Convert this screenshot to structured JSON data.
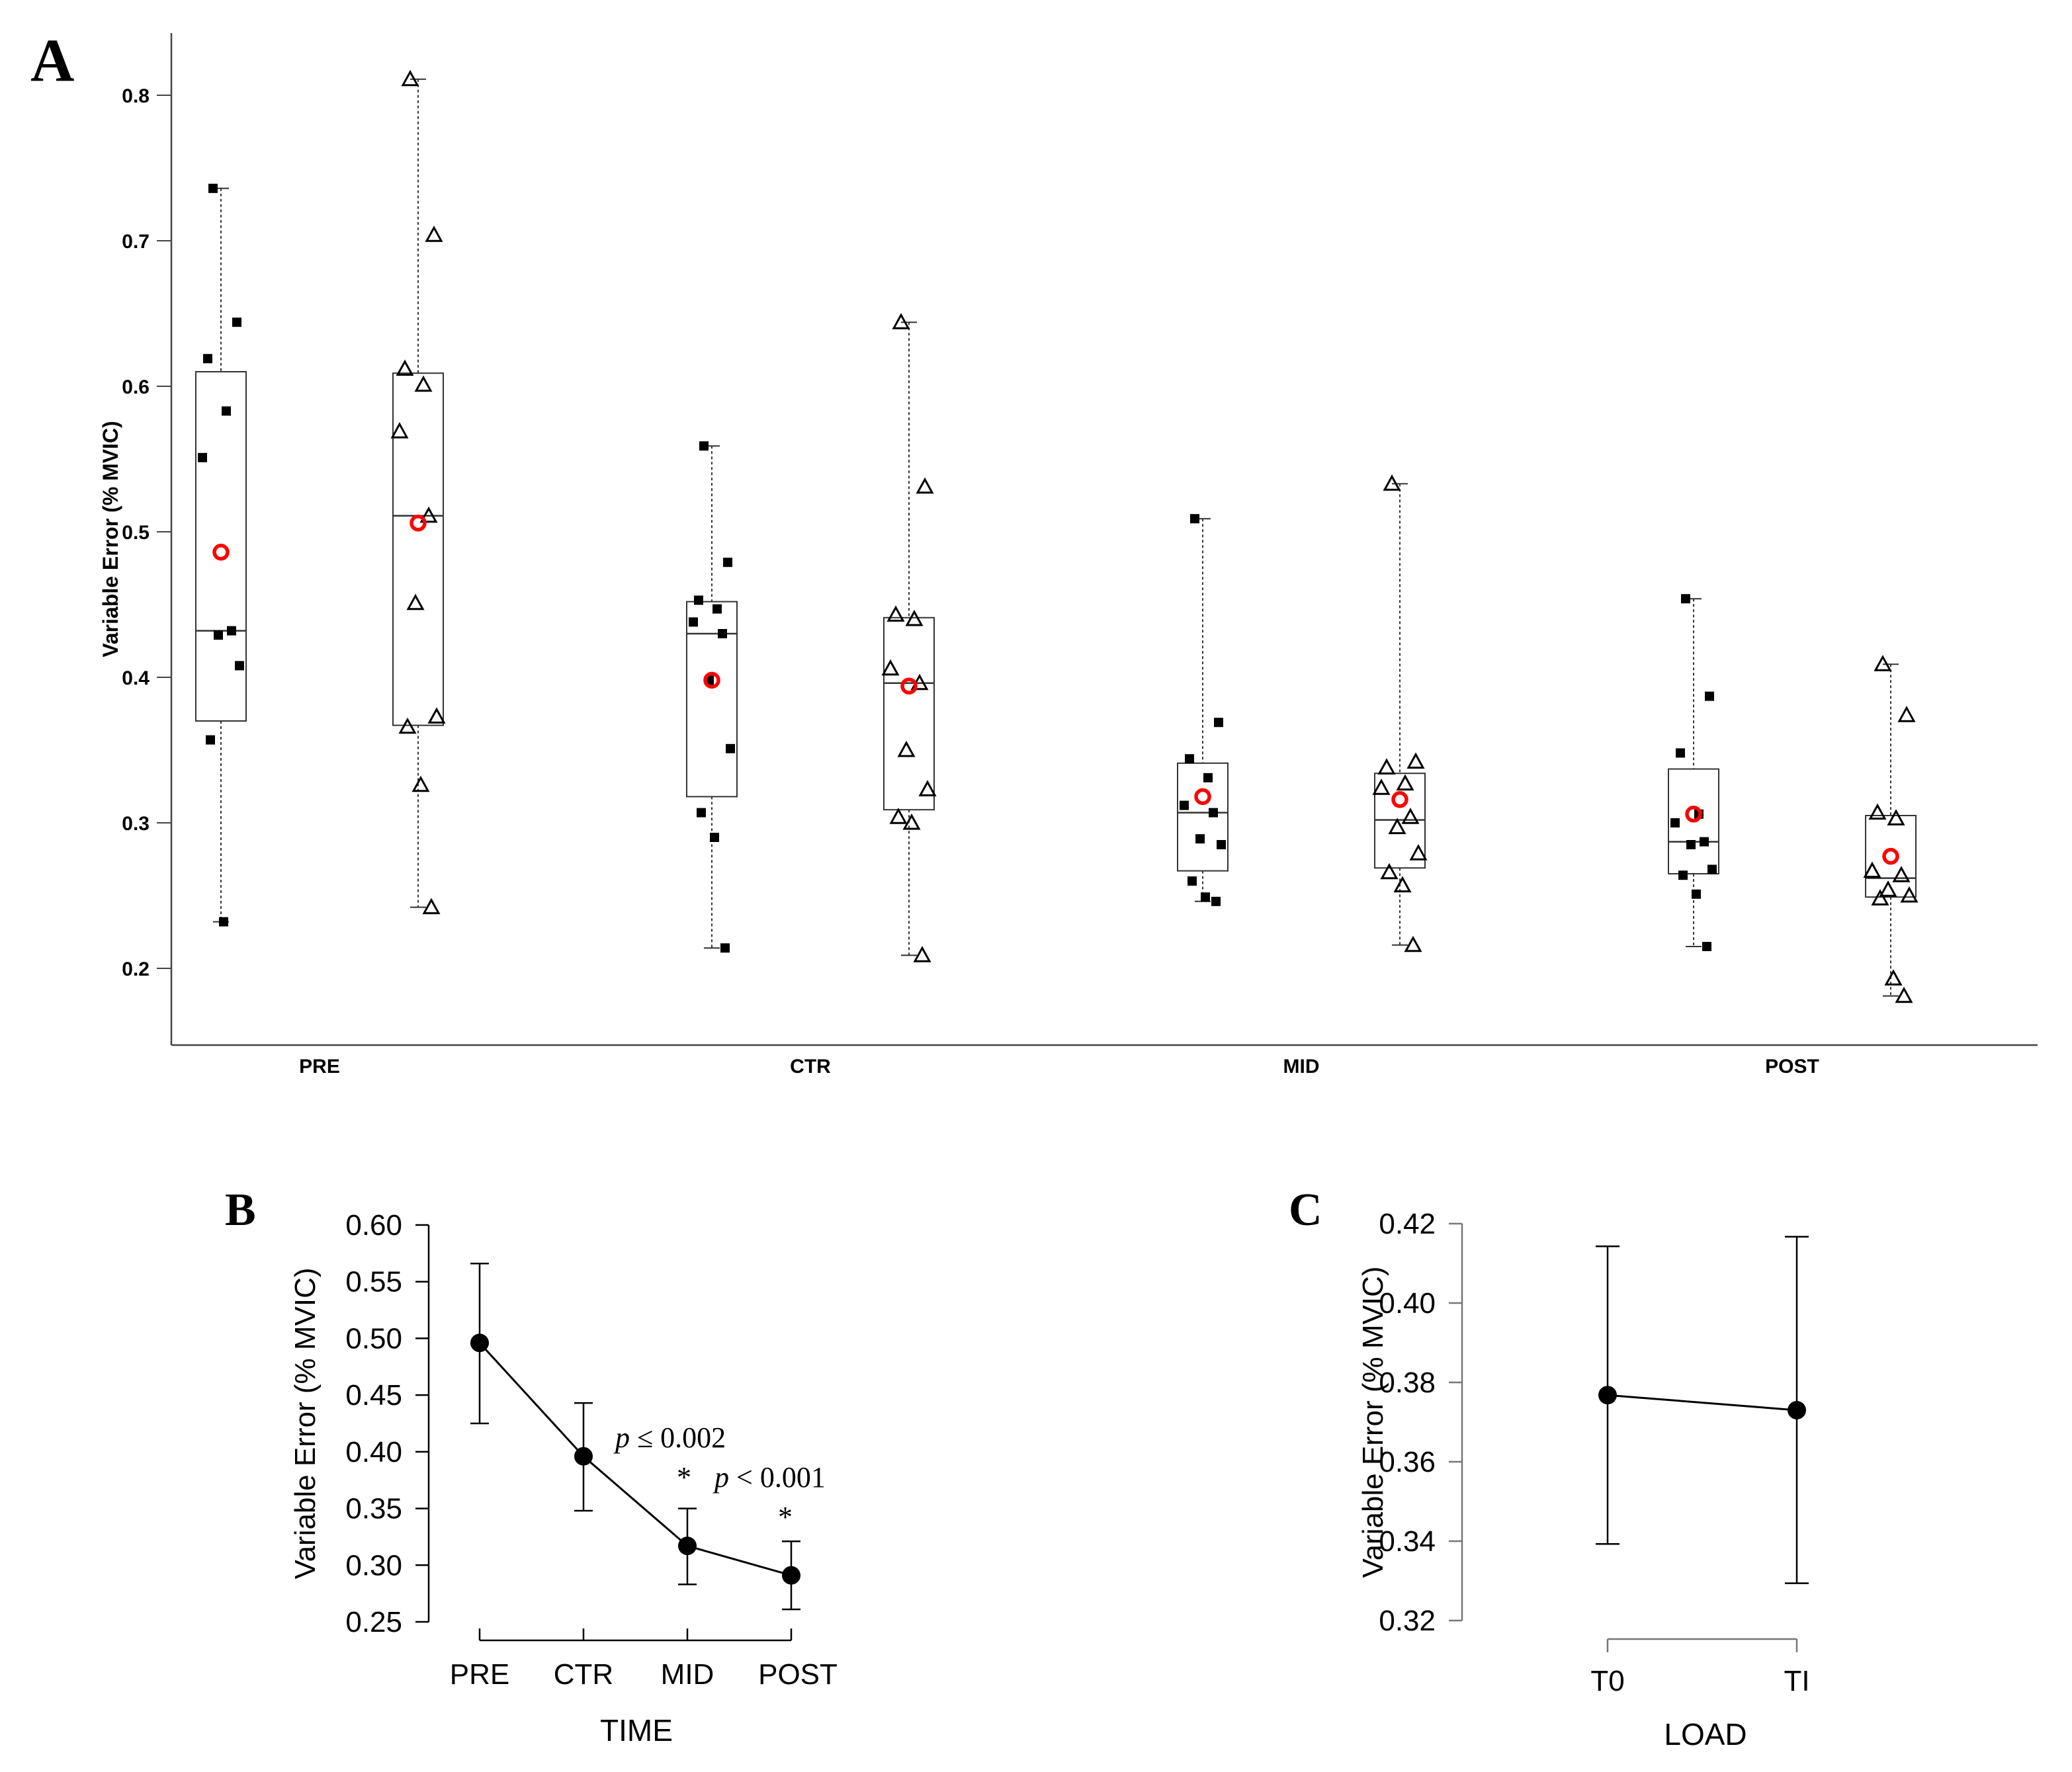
{
  "chart_data": [
    {
      "panel": "A",
      "type": "box",
      "panel_label": "A",
      "ylabel": "Variable Error (% MVIC)",
      "ylim": [
        0.15,
        0.84
      ],
      "yticks": [
        0.2,
        0.3,
        0.4,
        0.5,
        0.6,
        0.7,
        0.8
      ],
      "ytick_labels": [
        "0.2",
        "0.3",
        "0.4",
        "0.5",
        "0.6",
        "0.7",
        "0.8"
      ],
      "categories": [
        "PRE",
        "CTR",
        "MID",
        "POST"
      ],
      "colors": {
        "mean": "#ff0000",
        "points": "#000000",
        "box": "#000000"
      },
      "boxes": [
        {
          "group": "PRE",
          "load": "T0",
          "marker": "square",
          "min": 0.232,
          "q1": 0.37,
          "median": 0.432,
          "q3": 0.61,
          "max": 0.736,
          "mean": 0.486,
          "points": [
            0.736,
            0.644,
            0.619,
            0.583,
            0.551,
            0.432,
            0.429,
            0.408,
            0.357,
            0.232
          ]
        },
        {
          "group": "PRE",
          "load": "TI",
          "marker": "triangle",
          "min": 0.242,
          "q1": 0.367,
          "median": 0.511,
          "q3": 0.609,
          "max": 0.811,
          "mean": 0.506,
          "points": [
            0.811,
            0.704,
            0.612,
            0.601,
            0.569,
            0.511,
            0.451,
            0.373,
            0.366,
            0.326,
            0.242
          ]
        },
        {
          "group": "CTR",
          "load": "T0",
          "marker": "square",
          "min": 0.214,
          "q1": 0.318,
          "median": 0.43,
          "q3": 0.452,
          "max": 0.559,
          "mean": 0.398,
          "points": [
            0.559,
            0.479,
            0.453,
            0.447,
            0.438,
            0.43,
            0.398,
            0.351,
            0.307,
            0.29,
            0.214
          ]
        },
        {
          "group": "CTR",
          "load": "TI",
          "marker": "triangle",
          "min": 0.209,
          "q1": 0.309,
          "median": 0.396,
          "q3": 0.441,
          "max": 0.644,
          "mean": 0.394,
          "points": [
            0.644,
            0.531,
            0.443,
            0.44,
            0.406,
            0.396,
            0.35,
            0.323,
            0.304,
            0.3,
            0.209
          ]
        },
        {
          "group": "MID",
          "load": "T0",
          "marker": "square",
          "min": 0.246,
          "q1": 0.267,
          "median": 0.307,
          "q3": 0.341,
          "max": 0.509,
          "mean": 0.318,
          "points": [
            0.509,
            0.369,
            0.344,
            0.331,
            0.312,
            0.307,
            0.289,
            0.285,
            0.26,
            0.249,
            0.246
          ]
        },
        {
          "group": "MID",
          "load": "TI",
          "marker": "triangle",
          "min": 0.216,
          "q1": 0.269,
          "median": 0.302,
          "q3": 0.334,
          "max": 0.533,
          "mean": 0.316,
          "points": [
            0.533,
            0.342,
            0.338,
            0.327,
            0.324,
            0.304,
            0.297,
            0.279,
            0.266,
            0.257,
            0.216
          ]
        },
        {
          "group": "POST",
          "load": "T0",
          "marker": "square",
          "min": 0.215,
          "q1": 0.265,
          "median": 0.287,
          "q3": 0.337,
          "max": 0.454,
          "mean": 0.306,
          "points": [
            0.454,
            0.387,
            0.348,
            0.306,
            0.3,
            0.287,
            0.285,
            0.268,
            0.264,
            0.251,
            0.215
          ]
        },
        {
          "group": "POST",
          "load": "TI",
          "marker": "triangle",
          "min": 0.181,
          "q1": 0.249,
          "median": 0.262,
          "q3": 0.305,
          "max": 0.409,
          "mean": 0.277,
          "points": [
            0.409,
            0.374,
            0.307,
            0.303,
            0.267,
            0.264,
            0.254,
            0.25,
            0.248,
            0.193,
            0.181
          ]
        }
      ]
    },
    {
      "panel": "B",
      "type": "line",
      "panel_label": "B",
      "ylabel": "Variable Error (% MVIC)",
      "xlabel": "TIME",
      "categories": [
        "PRE",
        "CTR",
        "MID",
        "POST"
      ],
      "ylim": [
        0.25,
        0.6
      ],
      "yticks": [
        0.25,
        0.3,
        0.35,
        0.4,
        0.45,
        0.5,
        0.55,
        0.6
      ],
      "ytick_labels": [
        "0.25",
        "0.30",
        "0.35",
        "0.40",
        "0.45",
        "0.50",
        "0.55",
        "0.60"
      ],
      "values": [
        0.496,
        0.396,
        0.317,
        0.291
      ],
      "err_lower": [
        0.425,
        0.348,
        0.283,
        0.261
      ],
      "err_upper": [
        0.566,
        0.443,
        0.35,
        0.321
      ],
      "annotations": [
        {
          "category": "MID",
          "p_symbol": "p",
          "p_rel": " ≤ 0.002",
          "star": "*"
        },
        {
          "category": "POST",
          "p_symbol": "p",
          "p_rel": " < 0.001",
          "star": "*"
        }
      ]
    },
    {
      "panel": "C",
      "type": "line",
      "panel_label": "C",
      "ylabel": "Variable Error (% MVIC)",
      "xlabel": "LOAD",
      "categories": [
        "T0",
        "TI"
      ],
      "ylim": [
        0.32,
        0.42
      ],
      "yticks": [
        0.32,
        0.34,
        0.36,
        0.38,
        0.4,
        0.42
      ],
      "ytick_labels": [
        "0.32",
        "0.34",
        "0.36",
        "0.38",
        "0.40",
        "0.42"
      ],
      "values": [
        0.3768,
        0.373
      ],
      "err_lower": [
        0.3393,
        0.3294
      ],
      "err_upper": [
        0.4143,
        0.4167
      ]
    }
  ]
}
